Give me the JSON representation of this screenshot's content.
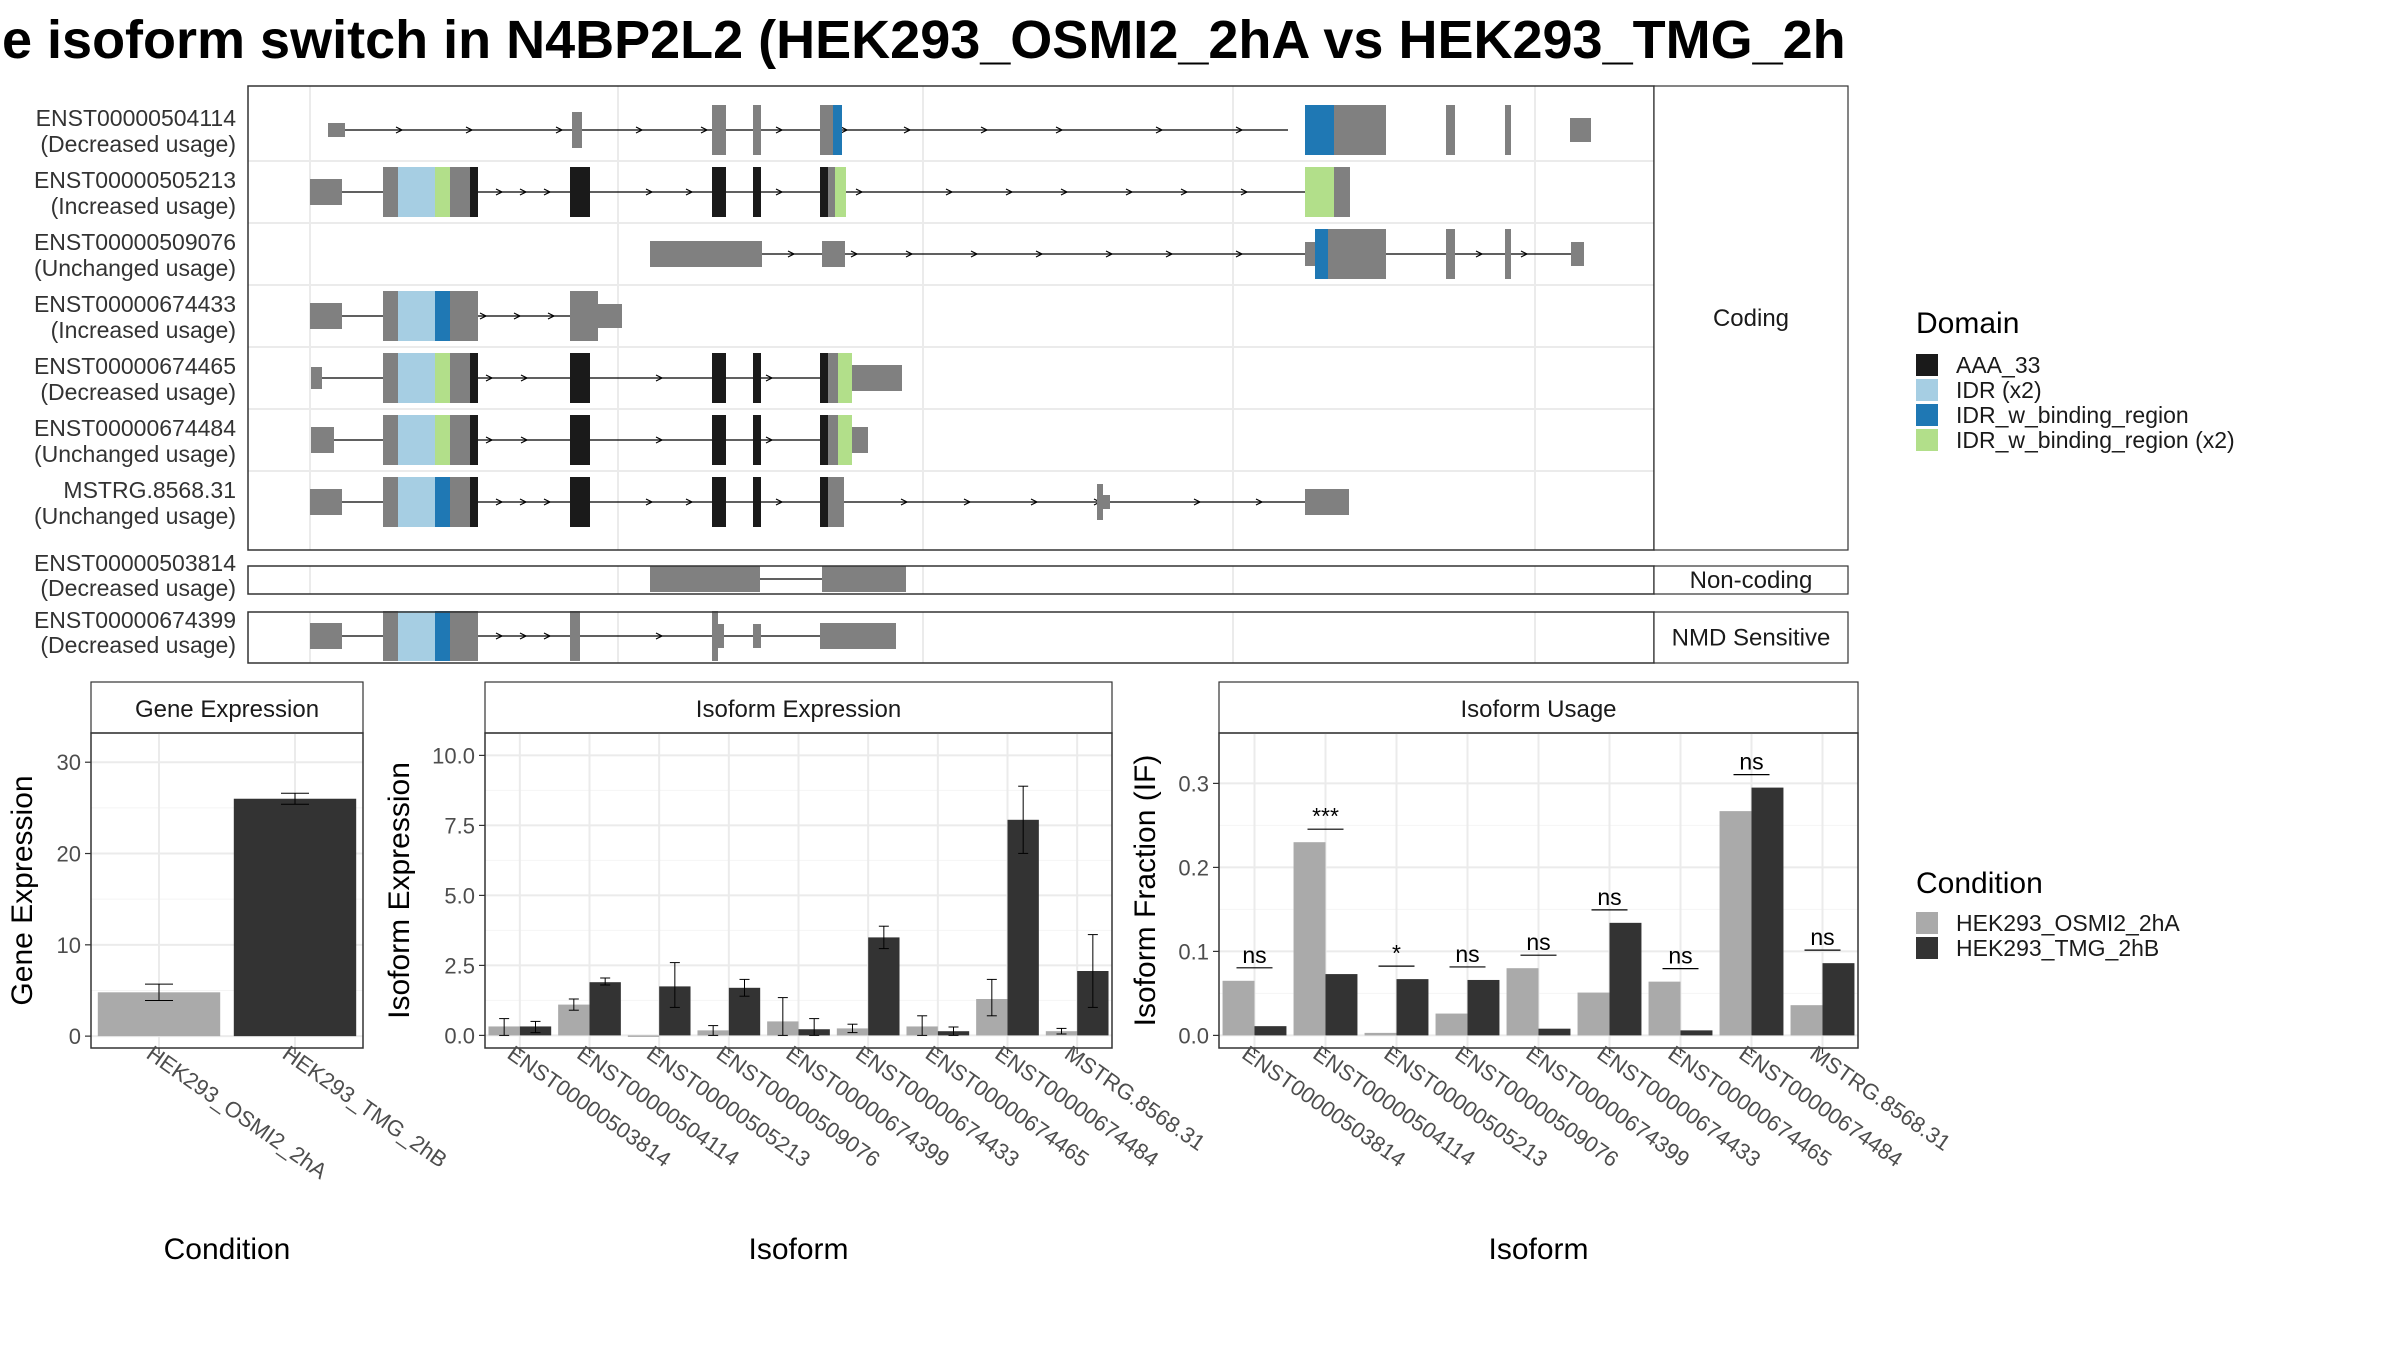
{
  "title": "e isoform switch in N4BP2L2 (HEK293_OSMI2_2hA vs HEK293_TMG_2h",
  "colors": {
    "exon": "#808080",
    "intron": "#000000",
    "AAA_33": "#1a1a1a",
    "IDR (x2)": "#a6cee3",
    "IDR_w_binding_region": "#1f78b4",
    "IDR_w_binding_region (x2)": "#b2df8a",
    "cond1": "#aaaaaa",
    "cond2": "#333333"
  },
  "structure": {
    "facets": [
      {
        "label": "Coding",
        "isoforms": [
          {
            "id": "ENST00000504114",
            "usage": "(Decreased usage)"
          },
          {
            "id": "ENST00000505213",
            "usage": "(Increased usage)"
          },
          {
            "id": "ENST00000509076",
            "usage": "(Unchanged usage)"
          },
          {
            "id": "ENST00000674433",
            "usage": "(Increased usage)"
          },
          {
            "id": "ENST00000674465",
            "usage": "(Decreased usage)"
          },
          {
            "id": "ENST00000674484",
            "usage": "(Unchanged usage)"
          },
          {
            "id": "MSTRG.8568.31",
            "usage": "(Unchanged usage)"
          }
        ]
      },
      {
        "label": "Non-coding",
        "isoforms": [
          {
            "id": "ENST00000503814",
            "usage": "(Decreased usage)"
          }
        ]
      },
      {
        "label": "NMD Sensitive",
        "isoforms": [
          {
            "id": "ENST00000674399",
            "usage": "(Decreased usage)"
          }
        ]
      }
    ]
  },
  "domain_legend": {
    "title": "Domain",
    "items": [
      "AAA_33",
      "IDR (x2)",
      "IDR_w_binding_region",
      "IDR_w_binding_region (x2)"
    ]
  },
  "condition_legend": {
    "title": "Condition",
    "items": [
      "HEK293_OSMI2_2hA",
      "HEK293_TMG_2hB"
    ]
  },
  "chart_data": [
    {
      "type": "bar",
      "title": "Gene Expression",
      "xlabel": "Condition",
      "ylabel": "Gene Expression",
      "categories": [
        "HEK293_OSMI2_2hA",
        "HEK293_TMG_2hB"
      ],
      "values": [
        4.8,
        26.0
      ],
      "errors": [
        [
          3.9,
          5.7
        ],
        [
          25.4,
          26.6
        ]
      ],
      "ylim": [
        -1.3,
        33.2
      ],
      "yticks": [
        0,
        10,
        20,
        30
      ],
      "grid": true
    },
    {
      "type": "bar",
      "title": "Isoform Expression",
      "xlabel": "Isoform",
      "ylabel": "Isoform Expression",
      "categories": [
        "ENST00000503814",
        "ENST00000504114",
        "ENST00000505213",
        "ENST00000509076",
        "ENST00000674399",
        "ENST00000674433",
        "ENST00000674465",
        "ENST00000674484",
        "MSTRG.8568.31"
      ],
      "series": [
        {
          "name": "HEK293_OSMI2_2hA",
          "values": [
            0.32,
            1.1,
            0.0,
            0.18,
            0.5,
            0.25,
            0.32,
            1.3,
            0.15
          ],
          "errors": [
            [
              0.0,
              0.6
            ],
            [
              0.9,
              1.3
            ],
            [
              0.0,
              0.0
            ],
            [
              0.0,
              0.35
            ],
            [
              0.0,
              1.35
            ],
            [
              0.1,
              0.4
            ],
            [
              0.0,
              0.7
            ],
            [
              0.7,
              2.0
            ],
            [
              0.05,
              0.25
            ]
          ]
        },
        {
          "name": "HEK293_TMG_2hB",
          "values": [
            0.32,
            1.9,
            1.75,
            1.7,
            0.22,
            3.5,
            0.15,
            7.7,
            2.3
          ],
          "errors": [
            [
              0.1,
              0.5
            ],
            [
              1.8,
              2.05
            ],
            [
              1.0,
              2.6
            ],
            [
              1.4,
              2.0
            ],
            [
              0.0,
              0.6
            ],
            [
              3.1,
              3.9
            ],
            [
              0.0,
              0.3
            ],
            [
              6.5,
              8.9
            ],
            [
              1.0,
              3.6
            ]
          ]
        }
      ],
      "ylim": [
        -0.45,
        10.8
      ],
      "yticks": [
        0.0,
        2.5,
        5.0,
        7.5,
        10.0
      ],
      "yticklabels": [
        "0.0",
        "2.5",
        "5.0",
        "7.5",
        "10.0"
      ],
      "grid": true
    },
    {
      "type": "bar",
      "title": "Isoform Usage",
      "xlabel": "Isoform",
      "ylabel": "Isoform Fraction (IF)",
      "categories": [
        "ENST00000503814",
        "ENST00000504114",
        "ENST00000505213",
        "ENST00000509076",
        "ENST00000674399",
        "ENST00000674433",
        "ENST00000674465",
        "ENST00000674484",
        "MSTRG.8568.31"
      ],
      "series": [
        {
          "name": "HEK293_OSMI2_2hA",
          "values": [
            0.065,
            0.23,
            0.003,
            0.026,
            0.08,
            0.051,
            0.064,
            0.267,
            0.036
          ]
        },
        {
          "name": "HEK293_TMG_2hB",
          "values": [
            0.011,
            0.073,
            0.067,
            0.066,
            0.008,
            0.134,
            0.006,
            0.295,
            0.086
          ]
        }
      ],
      "significance": [
        "ns",
        "***",
        "*",
        "ns",
        "ns",
        "ns",
        "ns",
        "ns",
        "ns"
      ],
      "ylim": [
        -0.015,
        0.36
      ],
      "yticks": [
        0.0,
        0.1,
        0.2,
        0.3
      ],
      "yticklabels": [
        "0.0",
        "0.1",
        "0.2",
        "0.3"
      ],
      "grid": true
    }
  ]
}
